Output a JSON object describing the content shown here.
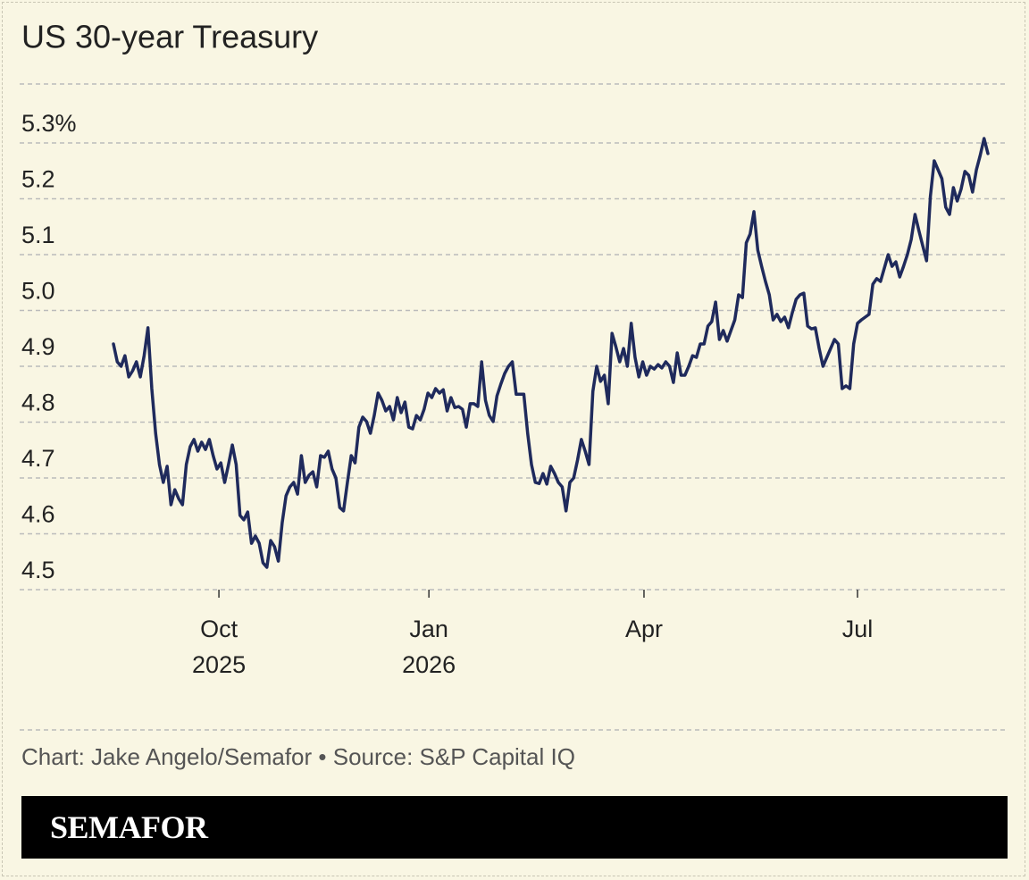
{
  "chart_data": {
    "type": "line",
    "title": "US 30-year Treasury",
    "color": "#1f2a5c",
    "grid": true,
    "ylim": [
      4.5,
      5.4
    ],
    "yticks": [
      4.5,
      4.6,
      4.7,
      4.8,
      4.9,
      {
        "value": 5.0,
        "label": "5.0"
      },
      5.1,
      5.2,
      {
        "value": 5.3,
        "label": "5.3%"
      }
    ],
    "xlim": [
      0,
      228
    ],
    "xticks": [
      {
        "value": 27.5,
        "label": "Oct 2025"
      },
      {
        "value": 82.25,
        "label": "Jan 2026"
      },
      {
        "value": 138.33,
        "label": "Apr"
      },
      {
        "value": 194,
        "label": "Jul"
      }
    ],
    "values": [
      4.94,
      4.908,
      4.9,
      4.919,
      4.881,
      4.892,
      4.908,
      4.881,
      4.919,
      4.969,
      4.86,
      4.78,
      4.724,
      4.692,
      4.721,
      4.652,
      4.679,
      4.663,
      4.652,
      4.724,
      4.756,
      4.769,
      4.748,
      4.764,
      4.751,
      4.769,
      4.74,
      4.716,
      4.727,
      4.692,
      4.724,
      4.759,
      4.724,
      4.633,
      4.625,
      4.639,
      4.583,
      4.596,
      4.583,
      4.548,
      4.54,
      4.588,
      4.577,
      4.551,
      4.62,
      4.668,
      4.684,
      4.692,
      4.671,
      4.74,
      4.692,
      4.705,
      4.711,
      4.684,
      4.74,
      4.737,
      4.748,
      4.716,
      4.7,
      4.647,
      4.641,
      4.692,
      4.74,
      4.727,
      4.791,
      4.809,
      4.801,
      4.78,
      4.812,
      4.852,
      4.839,
      4.82,
      4.828,
      4.804,
      4.844,
      4.817,
      4.836,
      4.791,
      4.788,
      4.812,
      4.804,
      4.823,
      4.852,
      4.844,
      4.86,
      4.852,
      4.858,
      4.82,
      4.844,
      4.826,
      4.828,
      4.823,
      4.791,
      4.833,
      4.833,
      4.828,
      4.908,
      4.839,
      4.812,
      4.801,
      4.847,
      4.868,
      4.887,
      4.9,
      4.908,
      4.85,
      4.85,
      4.85,
      4.78,
      4.724,
      4.692,
      4.69,
      4.708,
      4.689,
      4.721,
      4.708,
      4.692,
      4.684,
      4.641,
      4.692,
      4.7,
      4.732,
      4.769,
      4.748,
      4.724,
      4.855,
      4.9,
      4.873,
      4.884,
      4.833,
      4.959,
      4.935,
      4.908,
      4.932,
      4.9,
      4.977,
      4.916,
      4.881,
      4.908,
      4.884,
      4.9,
      4.895,
      4.903,
      4.897,
      4.908,
      4.9,
      4.871,
      4.924,
      4.884,
      4.884,
      4.9,
      4.919,
      4.916,
      4.94,
      4.94,
      4.972,
      4.98,
      5.015,
      4.948,
      4.964,
      4.945,
      4.964,
      4.983,
      5.028,
      5.023,
      5.121,
      5.137,
      5.177,
      5.108,
      5.079,
      5.052,
      5.028,
      4.983,
      4.993,
      4.98,
      4.988,
      4.969,
      4.996,
      5.02,
      5.028,
      5.031,
      4.972,
      4.967,
      4.969,
      4.932,
      4.9,
      4.916,
      4.932,
      4.948,
      4.94,
      4.86,
      4.865,
      4.86,
      4.94,
      4.977,
      4.983,
      4.988,
      4.993,
      5.047,
      5.057,
      5.052,
      5.076,
      5.1,
      5.079,
      5.087,
      5.06,
      5.079,
      5.1,
      5.127,
      5.172,
      5.143,
      5.116,
      5.089,
      5.204,
      5.268,
      5.252,
      5.236,
      5.185,
      5.172,
      5.22,
      5.196,
      5.217,
      5.249,
      5.242,
      5.212,
      5.252,
      5.278,
      5.308,
      5.281
    ]
  },
  "footer": {
    "source": "Chart: Jake Angelo/Semafor • Source: S&P Capital IQ",
    "brand": "SEMAFOR"
  }
}
